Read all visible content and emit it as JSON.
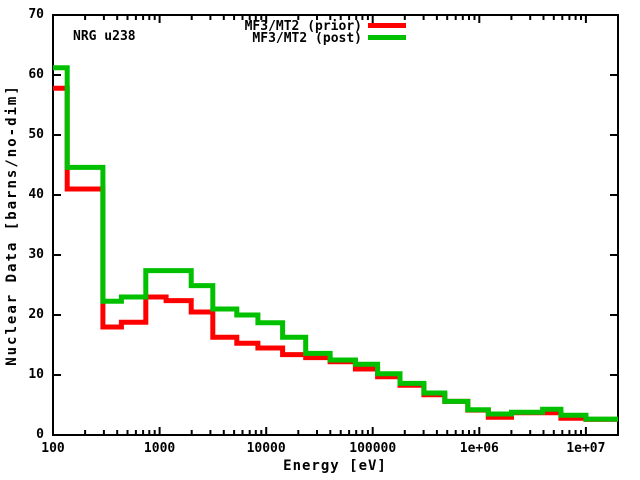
{
  "header": {
    "corner_label": "NRG u238"
  },
  "legend": [
    {
      "label": "MF3/MT2 (prior)",
      "color": "#ff0000"
    },
    {
      "label": "MF3/MT2 (post)",
      "color": "#00c000"
    }
  ],
  "chart_data": {
    "type": "line",
    "subtype": "step-histogram",
    "title": "",
    "xlabel": "Energy [eV]",
    "ylabel": "Nuclear Data [barns/no-dim]",
    "x_scale": "log",
    "xlim": [
      100,
      20000000
    ],
    "ylim": [
      0,
      70
    ],
    "y_tick_step": 10,
    "grid": false,
    "legend_position": "top-center",
    "x_major_ticks": [
      {
        "value": 100,
        "label": "100"
      },
      {
        "value": 1000,
        "label": "1000"
      },
      {
        "value": 10000,
        "label": "10000"
      },
      {
        "value": 100000,
        "label": "100000"
      },
      {
        "value": 1000000,
        "label": "1e+06"
      },
      {
        "value": 10000000,
        "label": "1e+07"
      }
    ],
    "energy_group_boundaries_eV": [
      100,
      136,
      294,
      438,
      742,
      1150,
      1980,
      3160,
      5300,
      8360,
      14260,
      23500,
      39800,
      68800,
      111000,
      180000,
      302000,
      474000,
      779000,
      1213000,
      2003000,
      3920000,
      5830000,
      10000000,
      20000000
    ],
    "series": [
      {
        "name": "MF3/MT2 (prior)",
        "color": "#ff0000",
        "values": [
          57.8,
          41.0,
          18.0,
          18.8,
          23.0,
          22.4,
          20.5,
          16.3,
          15.3,
          14.5,
          13.4,
          12.9,
          12.2,
          11.0,
          9.7,
          8.3,
          6.7,
          5.6,
          4.15,
          2.95,
          3.7,
          3.7,
          2.8,
          2.6
        ]
      },
      {
        "name": "MF3/MT2 (post)",
        "color": "#00c000",
        "values": [
          61.2,
          44.6,
          22.3,
          23.0,
          27.4,
          27.4,
          24.9,
          21.0,
          20.0,
          18.7,
          16.3,
          13.6,
          12.5,
          11.8,
          10.2,
          8.6,
          7.0,
          5.6,
          4.2,
          3.5,
          3.8,
          4.3,
          3.3,
          2.65
        ]
      }
    ]
  }
}
